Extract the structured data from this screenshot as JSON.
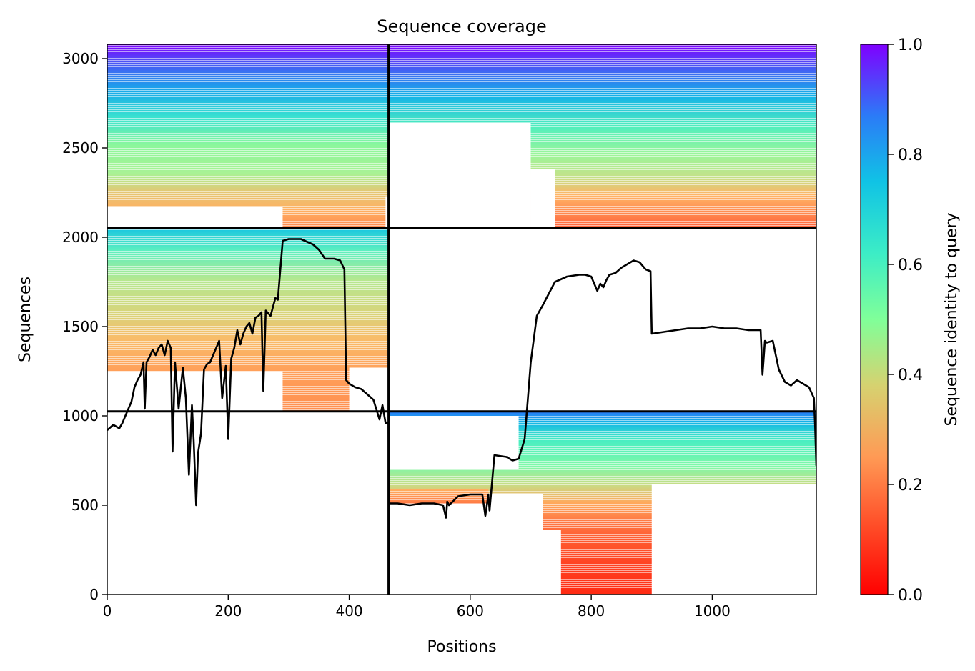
{
  "chart_data": {
    "type": "heatmap",
    "title": "Sequence coverage",
    "xlabel": "Positions",
    "ylabel": "Sequences",
    "xlim": [
      0,
      1172
    ],
    "ylim": [
      0,
      3080
    ],
    "xticks": [
      0,
      200,
      400,
      600,
      800,
      1000
    ],
    "yticks": [
      0,
      500,
      1000,
      1500,
      2000,
      2500,
      3000
    ],
    "colorbar": {
      "label": "Sequence identity to query",
      "range": [
        0.0,
        1.0
      ],
      "ticks": [
        "0.0",
        "0.2",
        "0.4",
        "0.6",
        "0.8",
        "1.0"
      ],
      "colormap": "rainbow_r"
    },
    "divider_x": 465,
    "divider_y": [
      1025,
      2050
    ],
    "blocks": [
      {
        "name": "top-left",
        "x": [
          0,
          465
        ],
        "y": [
          2050,
          3080
        ],
        "identity_top": 1.0,
        "identity_bottom": 0.15,
        "note": "orange region 290-460 at bottom"
      },
      {
        "name": "top-right",
        "x": [
          465,
          1172
        ],
        "y": [
          2050,
          3080
        ],
        "identity_top": 1.0,
        "identity_bottom": 0.12
      },
      {
        "name": "middle-left",
        "x": [
          0,
          465
        ],
        "y": [
          1025,
          2050
        ],
        "identity_top": 0.7,
        "identity_bottom": 0.2
      },
      {
        "name": "bottom-right",
        "x": [
          465,
          1172
        ],
        "y": [
          0,
          1025
        ],
        "identity_top": 0.85,
        "identity_bottom": 0.05
      }
    ],
    "series": [
      {
        "type": "line",
        "color": "#000000",
        "x": [
          0,
          10,
          20,
          25,
          30,
          40,
          45,
          50,
          55,
          60,
          62,
          65,
          70,
          75,
          80,
          85,
          90,
          95,
          100,
          105,
          108,
          112,
          118,
          125,
          130,
          135,
          140,
          143,
          147,
          150,
          155,
          160,
          165,
          170,
          175,
          180,
          185,
          190,
          196,
          200,
          205,
          210,
          215,
          220,
          225,
          230,
          235,
          240,
          245,
          250,
          255,
          258,
          262,
          270,
          278,
          282,
          290,
          300,
          320,
          340,
          350,
          360,
          375,
          385,
          392,
          395,
          400,
          410,
          420,
          430,
          440,
          450,
          455,
          460,
          465,
          466,
          470,
          480,
          500,
          520,
          540,
          555,
          560,
          562,
          565,
          580,
          600,
          620,
          625,
          630,
          632,
          640,
          660,
          670,
          680,
          690,
          700,
          710,
          720,
          740,
          760,
          780,
          790,
          800,
          810,
          815,
          820,
          825,
          830,
          840,
          850,
          860,
          870,
          880,
          890,
          898,
          900,
          920,
          940,
          960,
          980,
          1000,
          1020,
          1040,
          1060,
          1080,
          1083,
          1087,
          1090,
          1100,
          1110,
          1120,
          1130,
          1140,
          1150,
          1160,
          1168,
          1170,
          1172
        ],
        "y": [
          920,
          950,
          930,
          960,
          1000,
          1080,
          1160,
          1200,
          1230,
          1300,
          1040,
          1300,
          1330,
          1370,
          1340,
          1380,
          1400,
          1340,
          1420,
          1380,
          800,
          1300,
          1040,
          1270,
          1100,
          670,
          1060,
          860,
          500,
          790,
          900,
          1260,
          1290,
          1300,
          1340,
          1380,
          1420,
          1100,
          1280,
          870,
          1320,
          1380,
          1480,
          1400,
          1460,
          1500,
          1520,
          1460,
          1550,
          1560,
          1580,
          1140,
          1590,
          1560,
          1660,
          1650,
          1980,
          1990,
          1990,
          1960,
          1930,
          1880,
          1880,
          1870,
          1820,
          1200,
          1180,
          1160,
          1150,
          1120,
          1090,
          980,
          1060,
          960,
          960,
          510,
          510,
          510,
          500,
          510,
          510,
          500,
          430,
          520,
          500,
          550,
          560,
          560,
          440,
          560,
          470,
          780,
          770,
          750,
          760,
          870,
          1300,
          1560,
          1620,
          1750,
          1780,
          1790,
          1790,
          1780,
          1700,
          1740,
          1720,
          1760,
          1790,
          1800,
          1830,
          1850,
          1870,
          1860,
          1820,
          1810,
          1460,
          1470,
          1480,
          1490,
          1490,
          1500,
          1490,
          1490,
          1480,
          1480,
          1230,
          1420,
          1410,
          1420,
          1260,
          1190,
          1170,
          1200,
          1180,
          1160,
          1100,
          940,
          720
        ]
      }
    ]
  }
}
